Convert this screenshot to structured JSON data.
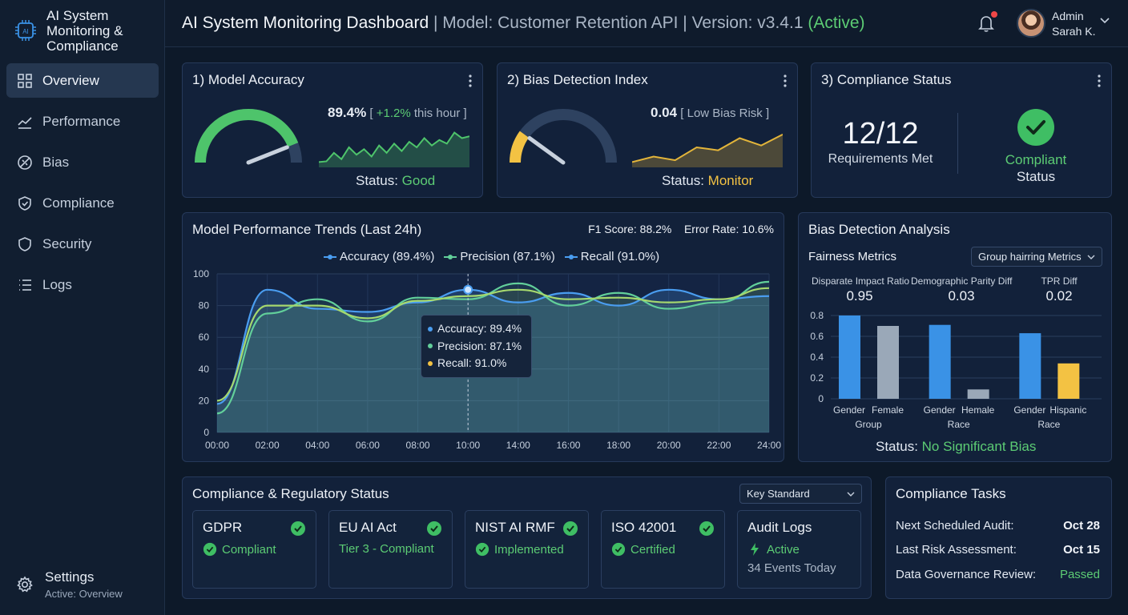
{
  "brand": {
    "title": "AI System Monitoring & Compliance"
  },
  "sidebar": {
    "items": [
      {
        "label": "Overview",
        "icon": "grid-icon",
        "active": true
      },
      {
        "label": "Performance",
        "icon": "trend-icon"
      },
      {
        "label": "Bias",
        "icon": "scale-icon"
      },
      {
        "label": "Compliance",
        "icon": "shield-check-icon"
      },
      {
        "label": "Security",
        "icon": "shield-icon"
      },
      {
        "label": "Logs",
        "icon": "list-icon"
      }
    ],
    "settings_label": "Settings",
    "settings_sub": "Active: Overview"
  },
  "header": {
    "title": "AI System Monitoring Dashboard",
    "model": "Model: Customer Retention API",
    "version": "Version: v3.4.1",
    "state": "(Active)",
    "user_role": "Admin",
    "user_name": "Sarah K."
  },
  "accuracy_card": {
    "title": "1) Model Accuracy",
    "value": "89.4%",
    "delta": "+1.2%",
    "delta_suffix": "this hour",
    "status_label": "Status:",
    "status": "Good",
    "gauge_fraction": 0.88
  },
  "bias_card": {
    "title": "2) Bias Detection Index",
    "value": "0.04",
    "note": "Low Bias Risk",
    "status_label": "Status:",
    "status": "Monitor",
    "gauge_fraction": 0.2
  },
  "compliance_card": {
    "title": "3) Compliance Status",
    "requirements": "12/12",
    "requirements_label": "Requirements Met",
    "status": "Compliant",
    "status_label": "Status"
  },
  "trends": {
    "title": "Model Performance Trends (Last 24h)",
    "f1_label": "F1 Score:",
    "f1_value": "88.2%",
    "err_label": "Error Rate:",
    "err_value": "10.6%",
    "tooltip": {
      "accuracy": "Accuracy: 89.4%",
      "precision": "Precision: 87.1%",
      "recall": "Recall: 91.0%"
    }
  },
  "chart_data": [
    {
      "type": "line",
      "title": "Model Performance Trends (Last 24h)",
      "x": [
        "00:00",
        "02:00",
        "04:00",
        "06:00",
        "08:00",
        "10:00",
        "14:00",
        "16:00",
        "18:00",
        "20:00",
        "22:00",
        "24:00"
      ],
      "ylim": [
        0,
        100
      ],
      "yticks": [
        "0",
        "20",
        "40",
        "60",
        "80",
        "100"
      ],
      "series": [
        {
          "name": "Accuracy (89.4%)",
          "color": "#4a9df0",
          "values": [
            18,
            90,
            78,
            76,
            82,
            90,
            82,
            88,
            80,
            90,
            84,
            86
          ]
        },
        {
          "name": "Precision (87.1%)",
          "color": "#62cf9a",
          "values": [
            12,
            75,
            84,
            70,
            85,
            84,
            94,
            80,
            88,
            78,
            82,
            95
          ]
        },
        {
          "name": "Recall (91.0%)",
          "color": "#a6d86e",
          "values": [
            20,
            80,
            80,
            72,
            83,
            86,
            90,
            84,
            85,
            82,
            84,
            91
          ]
        }
      ],
      "highlight_x": "10:00",
      "grid": true
    },
    {
      "type": "bar",
      "title": "Fairness Metrics",
      "ylim": [
        0,
        0.8
      ],
      "yticks": [
        "0",
        "0.2",
        "0.4",
        "0.6",
        "0.8"
      ],
      "groups": [
        {
          "labels": [
            "Gender",
            "Female"
          ],
          "group_label": "Group",
          "values": [
            0.8,
            0.7
          ],
          "colors": [
            "#3a92e6",
            "#9aa8b8"
          ]
        },
        {
          "labels": [
            "Gender",
            "Hemale"
          ],
          "group_label": "Race",
          "values": [
            0.71,
            0.09
          ],
          "colors": [
            "#3a92e6",
            "#9aa8b8"
          ]
        },
        {
          "labels": [
            "Gender",
            "Hispanic"
          ],
          "group_label": "Race",
          "values": [
            0.63,
            0.34
          ],
          "colors": [
            "#3a92e6",
            "#f3c243"
          ]
        }
      ]
    }
  ],
  "spark_accuracy": [
    0.1,
    0.12,
    0.35,
    0.18,
    0.5,
    0.3,
    0.45,
    0.25,
    0.55,
    0.35,
    0.6,
    0.4,
    0.65,
    0.5,
    0.75,
    0.55,
    0.7,
    0.6,
    0.9,
    0.75,
    0.8
  ],
  "spark_bias": [
    0.1,
    0.25,
    0.15,
    0.5,
    0.42,
    0.75,
    0.55,
    0.85
  ],
  "bias_analysis": {
    "title": "Bias Detection Analysis",
    "subtitle": "Fairness Metrics",
    "select": "Group hairring Metrics",
    "metrics": [
      {
        "label": "Disparate Impact Ratio",
        "value": "0.95"
      },
      {
        "label": "Demographic Parity Diff",
        "value": "0.03"
      },
      {
        "label": "TPR Diff",
        "value": "0.02"
      }
    ],
    "status_label": "Status:",
    "status": "No Significant Bias"
  },
  "regulatory": {
    "title": "Compliance & Regulatory Status",
    "select": "Key Standard",
    "items": [
      {
        "name": "GDPR",
        "status": "Compliant"
      },
      {
        "name": "EU AI Act",
        "status": "Tier 3 - Compliant"
      },
      {
        "name": "NIST AI RMF",
        "status": "Implemented"
      },
      {
        "name": "ISO 42001",
        "status": "Certified"
      }
    ],
    "audit": {
      "name": "Audit Logs",
      "status": "Active",
      "events": "34 Events Today"
    }
  },
  "tasks": {
    "title": "Compliance Tasks",
    "items": [
      {
        "label": "Next Scheduled Audit:",
        "value": "Oct 28"
      },
      {
        "label": "Last Risk Assessment:",
        "value": "Oct 15"
      },
      {
        "label": "Data Governance Review:",
        "value": "Passed"
      }
    ]
  }
}
